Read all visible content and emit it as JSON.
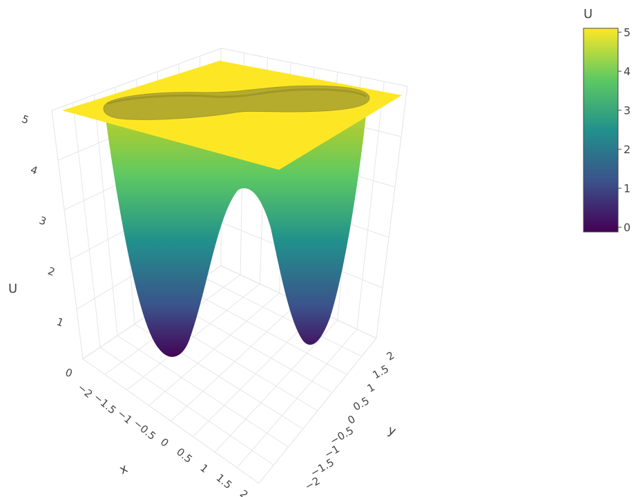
{
  "chart_data": {
    "type": "surface3d",
    "title": "",
    "axes": {
      "x": {
        "label": "x",
        "range": [
          -2,
          2
        ],
        "ticks": [
          "−2",
          "−1.5",
          "−1",
          "−0.5",
          "0",
          "0.5",
          "1",
          "1.5",
          "2"
        ]
      },
      "y": {
        "label": "y",
        "range": [
          -2,
          2
        ],
        "ticks": [
          "−2",
          "−1.5",
          "−1",
          "−0.5",
          "0",
          "0.5",
          "1",
          "1.5",
          "2"
        ]
      },
      "z": {
        "label": "U",
        "range": [
          0,
          5
        ],
        "ticks": [
          "0",
          "1",
          "2",
          "3",
          "4",
          "5"
        ]
      }
    },
    "surface": {
      "description_of_shape": "double-well potential clipped at U=5",
      "wells": [
        {
          "x": -1,
          "y": 0,
          "U": 0
        },
        {
          "x": 1,
          "y": 0,
          "U": 0
        }
      ],
      "saddle": {
        "x": 0,
        "y": 0,
        "U": 3.5
      },
      "cap_value": 5
    },
    "colorbar": {
      "title": "U",
      "ticks": [
        "0",
        "1",
        "2",
        "3",
        "4",
        "5"
      ],
      "colorscale": "viridis",
      "colors": [
        "#440154",
        "#3b528b",
        "#21918c",
        "#5ec962",
        "#fde725"
      ]
    },
    "grid": true
  }
}
